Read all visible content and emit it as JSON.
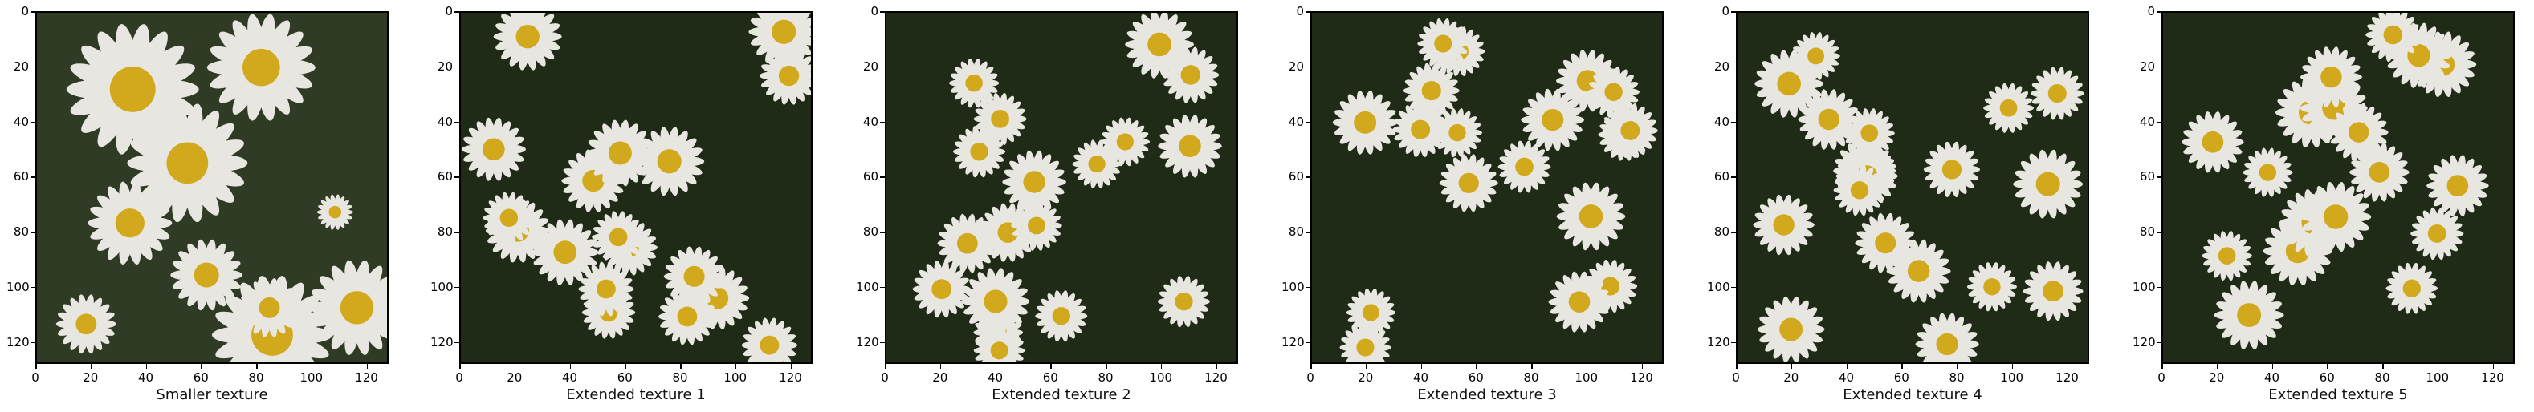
{
  "panels": [
    {
      "title": "Smaller texture",
      "variant": "smaller"
    },
    {
      "title": "Extended texture 1",
      "variant": "extended"
    },
    {
      "title": "Extended texture 2",
      "variant": "extended"
    },
    {
      "title": "Extended texture 3",
      "variant": "extended"
    },
    {
      "title": "Extended texture 4",
      "variant": "extended"
    },
    {
      "title": "Extended texture 5",
      "variant": "extended"
    }
  ],
  "axes": {
    "x_ticks": [
      "0",
      "20",
      "40",
      "60",
      "80",
      "100",
      "120"
    ],
    "y_ticks": [
      "0",
      "20",
      "40",
      "60",
      "80",
      "100",
      "120"
    ],
    "range": [
      0,
      128
    ]
  },
  "colors": {
    "background": "#1f2b17",
    "petal": "#e8e6e0",
    "center": "#d2a91c"
  }
}
